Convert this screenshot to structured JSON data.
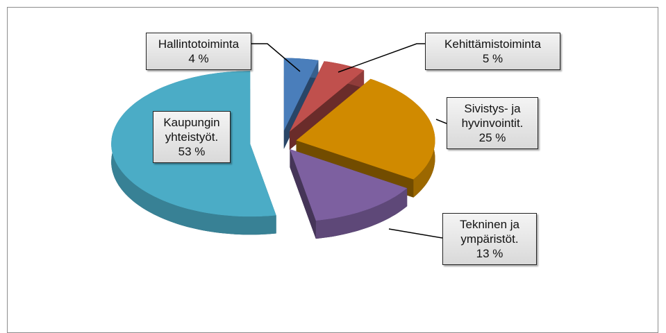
{
  "chart_data": {
    "type": "pie3d",
    "categories": [
      "Hallintotoiminta",
      "Kehittämistoiminta",
      "Sivistys- ja hyvinvointit.",
      "Tekninen ja ympäristöt.",
      "Kaupungin yhteistyöt."
    ],
    "values": [
      4,
      5,
      25,
      13,
      53
    ],
    "value_labels": [
      "4 %",
      "5 %",
      "25 %",
      "13 %",
      "53 %"
    ],
    "colors": [
      "#4a7ebb",
      "#c0504d",
      "#d08a00",
      "#7d60a0",
      "#4bacc6"
    ]
  }
}
